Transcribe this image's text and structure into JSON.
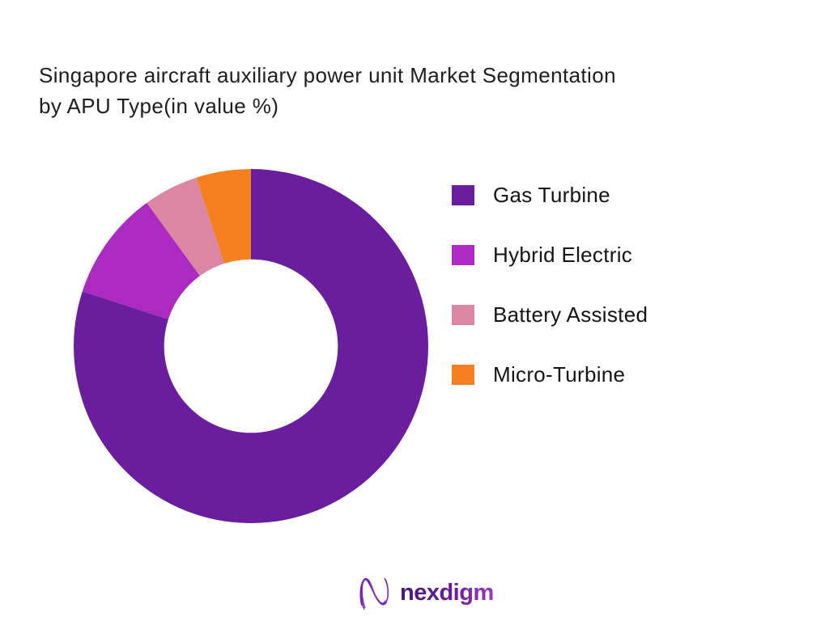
{
  "header": {
    "title_line1": "Singapore aircraft auxiliary power unit Market Segmentation",
    "title_line2": "by APU Type(in value %)"
  },
  "chart_data": {
    "type": "pie",
    "subtype": "donut",
    "title": "Singapore aircraft auxiliary power unit Market Segmentation by APU Type(in value %)",
    "unit": "value %",
    "categories": [
      "Gas Turbine",
      "Hybrid Electric",
      "Battery Assisted",
      "Micro-Turbine"
    ],
    "values": [
      80,
      10,
      5,
      5
    ],
    "colors": [
      "#6A1E9E",
      "#AB2BC1",
      "#DB87A3",
      "#F5801F"
    ],
    "start_angle_deg": 0,
    "direction": "clockwise",
    "inner_radius_ratio": 0.49,
    "legend_position": "right",
    "data_labels": false
  },
  "legend": {
    "items": [
      {
        "label": "Gas Turbine",
        "color": "#6A1E9E"
      },
      {
        "label": "Hybrid Electric",
        "color": "#AB2BC1"
      },
      {
        "label": "Battery Assisted",
        "color": "#DB87A3"
      },
      {
        "label": "Micro-Turbine",
        "color": "#F5801F"
      }
    ]
  },
  "footer": {
    "brand": "nexdigm",
    "logo_color": "#6a1b9a"
  }
}
